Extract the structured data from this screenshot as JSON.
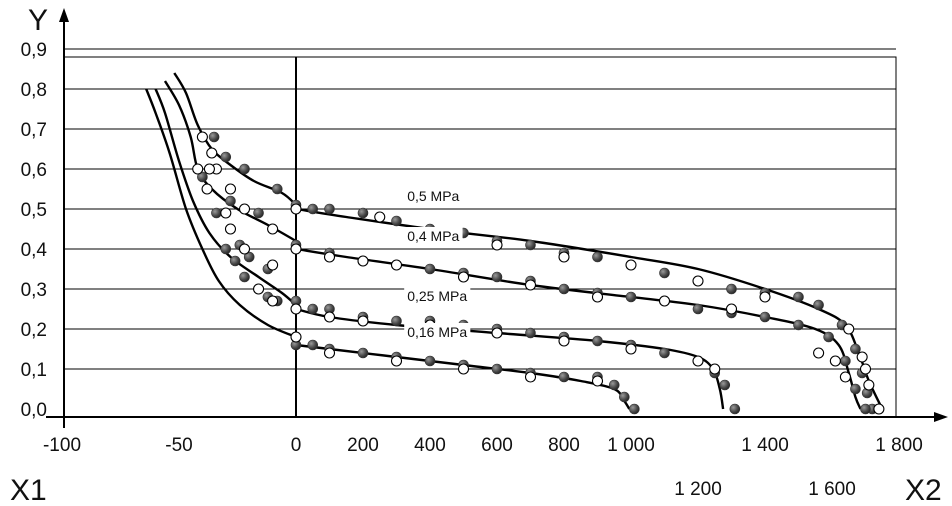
{
  "chart_data": {
    "type": "scatter",
    "axis_titles": {
      "y": "Y",
      "x1": "X1",
      "x2": "X2"
    },
    "y_axis": {
      "ticks": [
        0.0,
        0.1,
        0.2,
        0.3,
        0.4,
        0.5,
        0.6,
        0.7,
        0.8,
        0.9
      ],
      "tick_labels": [
        "0,0",
        "0,1",
        "0,2",
        "0,3",
        "0,4",
        "0,5",
        "0,6",
        "0,7",
        "0,8",
        "0,9"
      ],
      "ylim": [
        -0.02,
        0.92
      ]
    },
    "x1_axis": {
      "ticks": [
        -100,
        -50,
        0
      ],
      "tick_labels": [
        "-100",
        "-50",
        "0"
      ],
      "xlim": [
        -100,
        0
      ]
    },
    "x2_axis": {
      "ticks": [
        200,
        400,
        600,
        800,
        1000,
        1200,
        1400,
        1600,
        1800
      ],
      "tick_labels": [
        "200",
        "400",
        "600",
        "800",
        "1 000",
        "1 200",
        "1 400",
        "1 600",
        "1 800"
      ],
      "staggered_labels": [
        "1 200",
        "1 600"
      ],
      "xlim": [
        0,
        1800
      ]
    },
    "grid": "horizontal",
    "series": [
      {
        "name": "0,5 MPa",
        "label_at": {
          "x2": 320,
          "y": 0.5
        },
        "left_curve": [
          [
            -52,
            0.84
          ],
          [
            -47,
            0.79
          ],
          [
            -42,
            0.71
          ],
          [
            -36,
            0.65
          ],
          [
            -28,
            0.61
          ],
          [
            -18,
            0.57
          ],
          [
            -6,
            0.54
          ],
          [
            0,
            0.51
          ]
        ],
        "right_curve": [
          [
            0,
            0.5
          ],
          [
            150,
            0.48
          ],
          [
            400,
            0.45
          ],
          [
            700,
            0.42
          ],
          [
            1000,
            0.38
          ],
          [
            1200,
            0.35
          ],
          [
            1400,
            0.3
          ],
          [
            1560,
            0.25
          ],
          [
            1640,
            0.21
          ],
          [
            1680,
            0.14
          ],
          [
            1710,
            0.07
          ],
          [
            1750,
            0.0
          ]
        ],
        "filled_points": [
          [
            -35,
            0.68
          ],
          [
            -30,
            0.63
          ],
          [
            -22,
            0.6
          ],
          [
            -8,
            0.55
          ],
          [
            0,
            0.51
          ],
          [
            50,
            0.5
          ],
          [
            100,
            0.5
          ],
          [
            200,
            0.49
          ],
          [
            300,
            0.47
          ],
          [
            400,
            0.45
          ],
          [
            500,
            0.44
          ],
          [
            600,
            0.42
          ],
          [
            700,
            0.41
          ],
          [
            800,
            0.39
          ],
          [
            900,
            0.38
          ],
          [
            1000,
            0.36
          ],
          [
            1100,
            0.34
          ],
          [
            1200,
            0.32
          ],
          [
            1300,
            0.3
          ],
          [
            1400,
            0.29
          ],
          [
            1500,
            0.28
          ],
          [
            1560,
            0.26
          ],
          [
            1630,
            0.21
          ],
          [
            1670,
            0.15
          ],
          [
            1690,
            0.09
          ],
          [
            1705,
            0.04
          ],
          [
            1720,
            0.0
          ]
        ],
        "open_points": [
          [
            -40,
            0.68
          ],
          [
            -36,
            0.64
          ],
          [
            -34,
            0.6
          ],
          [
            0,
            0.5
          ],
          [
            250,
            0.48
          ],
          [
            400,
            0.44
          ],
          [
            600,
            0.41
          ],
          [
            800,
            0.38
          ],
          [
            1000,
            0.36
          ],
          [
            1200,
            0.32
          ],
          [
            1400,
            0.28
          ],
          [
            1650,
            0.2
          ],
          [
            1690,
            0.13
          ],
          [
            1700,
            0.1
          ],
          [
            1710,
            0.06
          ],
          [
            1740,
            0.0
          ]
        ]
      },
      {
        "name": "0,4 MPa",
        "label_at": {
          "x2": 320,
          "y": 0.4
        },
        "left_curve": [
          [
            -56,
            0.82
          ],
          [
            -50,
            0.76
          ],
          [
            -45,
            0.68
          ],
          [
            -42,
            0.6
          ],
          [
            -36,
            0.55
          ],
          [
            -25,
            0.5
          ],
          [
            -12,
            0.46
          ],
          [
            0,
            0.42
          ]
        ],
        "right_curve": [
          [
            0,
            0.4
          ],
          [
            150,
            0.38
          ],
          [
            400,
            0.35
          ],
          [
            700,
            0.31
          ],
          [
            1000,
            0.28
          ],
          [
            1200,
            0.26
          ],
          [
            1400,
            0.23
          ],
          [
            1550,
            0.2
          ],
          [
            1620,
            0.16
          ],
          [
            1650,
            0.09
          ],
          [
            1670,
            0.03
          ],
          [
            1685,
            0.0
          ]
        ],
        "filled_points": [
          [
            -40,
            0.58
          ],
          [
            -28,
            0.52
          ],
          [
            -16,
            0.49
          ],
          [
            0,
            0.41
          ],
          [
            100,
            0.39
          ],
          [
            200,
            0.37
          ],
          [
            300,
            0.36
          ],
          [
            400,
            0.35
          ],
          [
            500,
            0.34
          ],
          [
            600,
            0.33
          ],
          [
            700,
            0.32
          ],
          [
            800,
            0.3
          ],
          [
            900,
            0.29
          ],
          [
            1000,
            0.28
          ],
          [
            1100,
            0.27
          ],
          [
            1200,
            0.25
          ],
          [
            1300,
            0.24
          ],
          [
            1400,
            0.23
          ],
          [
            1500,
            0.21
          ],
          [
            1590,
            0.18
          ],
          [
            1640,
            0.12
          ],
          [
            1670,
            0.05
          ],
          [
            1700,
            0.0
          ]
        ],
        "open_points": [
          [
            -42,
            0.6
          ],
          [
            -37,
            0.6
          ],
          [
            -38,
            0.55
          ],
          [
            -28,
            0.55
          ],
          [
            -22,
            0.5
          ],
          [
            -10,
            0.45
          ],
          [
            0,
            0.4
          ],
          [
            100,
            0.38
          ],
          [
            200,
            0.37
          ],
          [
            300,
            0.36
          ],
          [
            500,
            0.33
          ],
          [
            700,
            0.31
          ],
          [
            900,
            0.28
          ],
          [
            1100,
            0.27
          ],
          [
            1300,
            0.25
          ],
          [
            1560,
            0.14
          ],
          [
            1610,
            0.12
          ],
          [
            1640,
            0.08
          ]
        ]
      },
      {
        "name": "0,25 MPa",
        "label_at": {
          "x2": 320,
          "y": 0.25
        },
        "left_curve": [
          [
            -60,
            0.8
          ],
          [
            -56,
            0.74
          ],
          [
            -50,
            0.62
          ],
          [
            -44,
            0.52
          ],
          [
            -37,
            0.44
          ],
          [
            -28,
            0.38
          ],
          [
            -16,
            0.33
          ],
          [
            -6,
            0.29
          ],
          [
            0,
            0.26
          ]
        ],
        "right_curve": [
          [
            0,
            0.25
          ],
          [
            100,
            0.23
          ],
          [
            300,
            0.21
          ],
          [
            600,
            0.19
          ],
          [
            900,
            0.17
          ],
          [
            1100,
            0.15
          ],
          [
            1200,
            0.13
          ],
          [
            1245,
            0.1
          ],
          [
            1265,
            0.05
          ],
          [
            1275,
            0.0
          ]
        ],
        "filled_points": [
          [
            -34,
            0.49
          ],
          [
            -28,
            0.45
          ],
          [
            -24,
            0.41
          ],
          [
            -20,
            0.38
          ],
          [
            -12,
            0.35
          ],
          [
            0,
            0.27
          ],
          [
            50,
            0.25
          ],
          [
            100,
            0.25
          ],
          [
            200,
            0.23
          ],
          [
            300,
            0.22
          ],
          [
            400,
            0.22
          ],
          [
            500,
            0.21
          ],
          [
            600,
            0.2
          ],
          [
            700,
            0.19
          ],
          [
            800,
            0.18
          ],
          [
            900,
            0.17
          ],
          [
            1000,
            0.16
          ],
          [
            1100,
            0.14
          ],
          [
            1200,
            0.12
          ],
          [
            1250,
            0.09
          ],
          [
            1280,
            0.06
          ],
          [
            1310,
            0.0
          ]
        ],
        "open_points": [
          [
            -30,
            0.49
          ],
          [
            -28,
            0.45
          ],
          [
            -22,
            0.4
          ],
          [
            -10,
            0.36
          ],
          [
            0,
            0.25
          ],
          [
            100,
            0.23
          ],
          [
            200,
            0.22
          ],
          [
            400,
            0.21
          ],
          [
            600,
            0.19
          ],
          [
            800,
            0.17
          ],
          [
            1000,
            0.15
          ],
          [
            1200,
            0.12
          ],
          [
            1250,
            0.1
          ]
        ]
      },
      {
        "name": "0,16 MPa",
        "label_at": {
          "x2": 320,
          "y": 0.16
        },
        "left_curve": [
          [
            -64,
            0.8
          ],
          [
            -60,
            0.74
          ],
          [
            -54,
            0.64
          ],
          [
            -47,
            0.5
          ],
          [
            -40,
            0.4
          ],
          [
            -33,
            0.32
          ],
          [
            -24,
            0.26
          ],
          [
            -12,
            0.21
          ],
          [
            0,
            0.18
          ]
        ],
        "right_curve": [
          [
            0,
            0.16
          ],
          [
            100,
            0.15
          ],
          [
            300,
            0.13
          ],
          [
            500,
            0.11
          ],
          [
            700,
            0.09
          ],
          [
            850,
            0.07
          ],
          [
            950,
            0.05
          ],
          [
            980,
            0.02
          ],
          [
            995,
            0.0
          ]
        ],
        "filled_points": [
          [
            -30,
            0.4
          ],
          [
            -26,
            0.37
          ],
          [
            -22,
            0.33
          ],
          [
            -16,
            0.3
          ],
          [
            -12,
            0.28
          ],
          [
            -8,
            0.27
          ],
          [
            0,
            0.16
          ],
          [
            50,
            0.16
          ],
          [
            100,
            0.15
          ],
          [
            200,
            0.14
          ],
          [
            300,
            0.13
          ],
          [
            400,
            0.12
          ],
          [
            500,
            0.11
          ],
          [
            600,
            0.1
          ],
          [
            700,
            0.09
          ],
          [
            800,
            0.08
          ],
          [
            900,
            0.08
          ],
          [
            950,
            0.06
          ],
          [
            980,
            0.03
          ],
          [
            1010,
            0.0
          ]
        ],
        "open_points": [
          [
            -16,
            0.3
          ],
          [
            -10,
            0.27
          ],
          [
            0,
            0.18
          ],
          [
            100,
            0.14
          ],
          [
            300,
            0.12
          ],
          [
            500,
            0.1
          ],
          [
            700,
            0.08
          ],
          [
            900,
            0.07
          ]
        ]
      }
    ]
  }
}
